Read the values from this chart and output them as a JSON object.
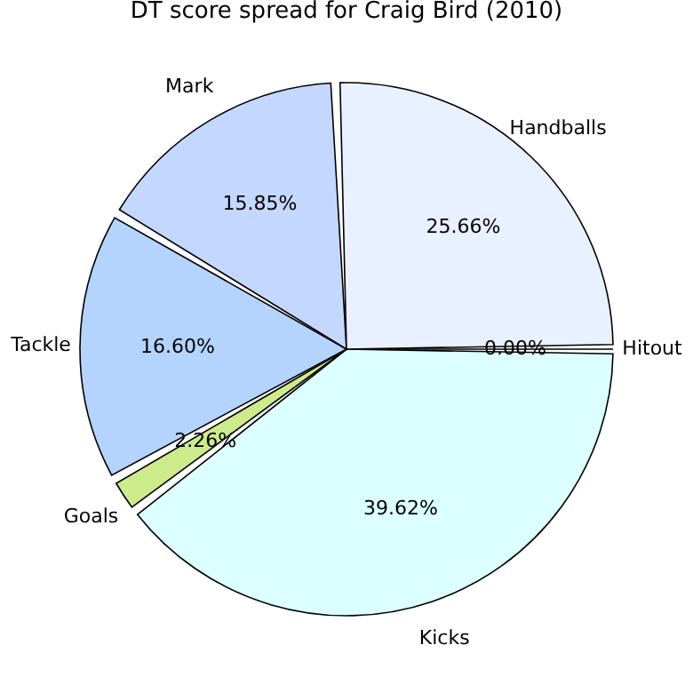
{
  "chart_data": {
    "type": "pie",
    "title": "DT score spread for Craig Bird (2010)",
    "categories": [
      "Hitout",
      "Kicks",
      "Goals",
      "Tackle",
      "Mark",
      "Handballs"
    ],
    "values": [
      0.0,
      39.62,
      2.26,
      16.6,
      15.85,
      25.66
    ],
    "value_labels": [
      "0.00%",
      "39.62%",
      "2.26%",
      "16.60%",
      "15.85%",
      "25.66%"
    ],
    "colors": [
      "#ffffff",
      "#dcffff",
      "#cdeb8b",
      "#b4d4ff",
      "#c4d7ff",
      "#e9f0ff"
    ]
  }
}
